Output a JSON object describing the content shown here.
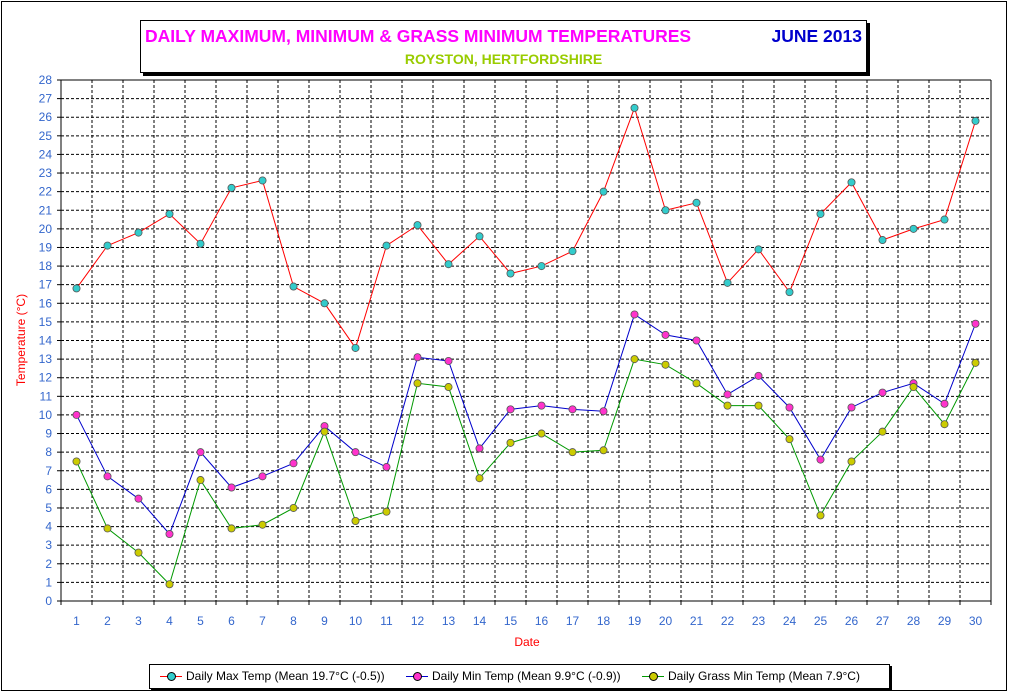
{
  "title": {
    "main": "DAILY MAXIMUM, MINIMUM & GRASS MINIMUM TEMPERATURES",
    "month": "JUNE 2013",
    "subtitle": "ROYSTON, HERTFORDSHIRE"
  },
  "colors": {
    "title_main": "#ff00ff",
    "title_month": "#0000cc",
    "subtitle": "#99cc00",
    "axis_text": "#3366cc",
    "axis_label": "#ff0000",
    "plot_bg": "#ffffff"
  },
  "chart_data": {
    "type": "line",
    "xlabel": "Date",
    "ylabel": "Temperature (°C)",
    "ylim": [
      0,
      28
    ],
    "ystep": 1,
    "grid": true,
    "legend_position": "bottom",
    "x": [
      1,
      2,
      3,
      4,
      5,
      6,
      7,
      8,
      9,
      10,
      11,
      12,
      13,
      14,
      15,
      16,
      17,
      18,
      19,
      20,
      21,
      22,
      23,
      24,
      25,
      26,
      27,
      28,
      29,
      30
    ],
    "series": [
      {
        "name": "Daily Max Temp (Mean 19.7°C (-0.5))",
        "line_color": "#ff0000",
        "marker_color": "#33cccc",
        "values": [
          16.8,
          19.1,
          19.8,
          20.8,
          19.2,
          22.2,
          22.6,
          16.9,
          16.0,
          13.6,
          19.1,
          20.2,
          18.1,
          19.6,
          17.6,
          18.0,
          18.8,
          22.0,
          26.5,
          21.0,
          21.4,
          17.1,
          18.9,
          16.6,
          20.8,
          22.5,
          19.4,
          20.0,
          20.5,
          25.8
        ]
      },
      {
        "name": "Daily Min Temp (Mean 9.9°C (-0.9))",
        "line_color": "#0000cc",
        "marker_color": "#ff33cc",
        "values": [
          10.0,
          6.7,
          5.5,
          3.6,
          8.0,
          6.1,
          6.7,
          7.4,
          9.4,
          8.0,
          7.2,
          13.1,
          12.9,
          8.2,
          10.3,
          10.5,
          10.3,
          10.2,
          15.4,
          14.3,
          14.0,
          11.1,
          12.1,
          10.4,
          7.6,
          10.4,
          11.2,
          11.7,
          10.6,
          14.9
        ]
      },
      {
        "name": "Daily Grass Min Temp (Mean 7.9°C)",
        "line_color": "#009900",
        "marker_color": "#cccc00",
        "values": [
          7.5,
          3.9,
          2.6,
          0.9,
          6.5,
          3.9,
          4.1,
          5.0,
          9.1,
          4.3,
          4.8,
          11.7,
          11.5,
          6.6,
          8.5,
          9.0,
          8.0,
          8.1,
          13.0,
          12.7,
          11.7,
          10.5,
          10.5,
          8.7,
          4.6,
          7.5,
          9.1,
          11.5,
          9.5,
          12.8
        ]
      }
    ]
  }
}
